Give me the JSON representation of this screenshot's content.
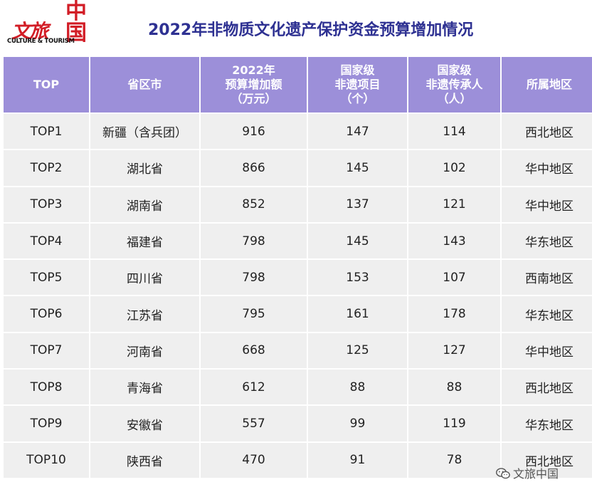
{
  "logo": {
    "cn_left": "文旅",
    "cn_right": "中国",
    "en": "CULTURE & TOURISM"
  },
  "title": "2022年非物质文化遗产保护资金预算增加情况",
  "table": {
    "headers": [
      [
        "TOP"
      ],
      [
        "省区市"
      ],
      [
        "2022年",
        "预算增加额",
        "（万元）"
      ],
      [
        "国家级",
        "非遗项目",
        "（个）"
      ],
      [
        "国家级",
        "非遗传承人",
        "（人）"
      ],
      [
        "所属地区"
      ]
    ],
    "rows": [
      [
        "TOP1",
        "新疆（含兵团）",
        "916",
        "147",
        "114",
        "西北地区"
      ],
      [
        "TOP2",
        "湖北省",
        "866",
        "145",
        "102",
        "华中地区"
      ],
      [
        "TOP3",
        "湖南省",
        "852",
        "137",
        "121",
        "华中地区"
      ],
      [
        "TOP4",
        "福建省",
        "798",
        "145",
        "143",
        "华东地区"
      ],
      [
        "TOP5",
        "四川省",
        "798",
        "153",
        "107",
        "西南地区"
      ],
      [
        "TOP6",
        "江苏省",
        "795",
        "161",
        "178",
        "华东地区"
      ],
      [
        "TOP7",
        "河南省",
        "668",
        "125",
        "127",
        "华中地区"
      ],
      [
        "TOP8",
        "青海省",
        "612",
        "88",
        "88",
        "西北地区"
      ],
      [
        "TOP9",
        "安徽省",
        "557",
        "99",
        "119",
        "华东地区"
      ],
      [
        "TOP10",
        "陕西省",
        "470",
        "91",
        "78",
        "西北地区"
      ]
    ]
  },
  "watermark": {
    "icon": "wechat-icon",
    "text": "文旅中国"
  },
  "colors": {
    "header_bg": "#9c8fd9",
    "cell_bg": "#efefef",
    "title": "#2e3192",
    "logo_red": "#d21d26"
  }
}
